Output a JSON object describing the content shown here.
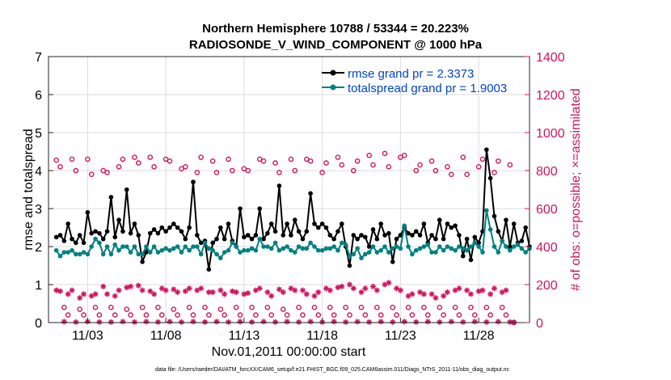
{
  "chart_data": {
    "type": "line",
    "title": "Northern Hemisphere 10788 / 53344 = 20.223%",
    "subtitle": "RADIOSONDE_V_WIND_COMPONENT @ 1000 hPa",
    "xlabel": "Nov.01,2011 00:00:00 start",
    "ylabel": "rmse and totalspread",
    "ylabel_right": "# of obs: o=possible; ×=assimilated",
    "footer": "data file: /Users/raeder/DAI/ATM_forcXX/CAM6_setup/f.e21.FHIST_BGC.f09_025.CAM6assim.011/Diags_NTrS_2011-11/obs_diag_output.nc",
    "xlim": [
      0.5,
      31.25
    ],
    "ylim": [
      0,
      7
    ],
    "ylim_right": [
      0,
      1400
    ],
    "x_tick_values": [
      3,
      8,
      13,
      18,
      23,
      28
    ],
    "x_tick_labels": [
      "11/03",
      "11/08",
      "11/13",
      "11/18",
      "11/23",
      "11/28"
    ],
    "y_tick_labels": [
      "0",
      "1",
      "2",
      "3",
      "4",
      "5",
      "6",
      "7"
    ],
    "y_right_tick_labels": [
      "0",
      "200",
      "400",
      "600",
      "800",
      "1000",
      "1200",
      "1400"
    ],
    "legend": [
      "rmse grand pr = 2.3373",
      "totalspread grand pr = 1.9003"
    ],
    "colors": {
      "rmse": "#000000",
      "spread": "#008080",
      "obs": "#d0145f",
      "legend_text": "#0044cc"
    },
    "series": [
      {
        "name": "rmse",
        "axis": "left",
        "values": [
          2.25,
          2.3,
          2.15,
          2.6,
          2.2,
          2.1,
          2.3,
          2.1,
          2.9,
          2.35,
          2.4,
          2.35,
          2.2,
          2.4,
          3.3,
          2.25,
          2.7,
          2.4,
          3.5,
          2.35,
          2.6,
          2.3,
          1.6,
          1.85,
          2.35,
          2.45,
          2.35,
          2.5,
          2.4,
          2.5,
          2.6,
          2.5,
          2.4,
          2.2,
          2.5,
          3.7,
          2.3,
          2.1,
          2.15,
          1.4,
          2.1,
          2.2,
          2.5,
          2.2,
          2.6,
          2.15,
          2.0,
          3.0,
          2.25,
          2.3,
          2.2,
          2.3,
          3.0,
          2.2,
          2.35,
          2.6,
          2.4,
          3.6,
          2.3,
          2.6,
          2.3,
          2.7,
          2.4,
          2.2,
          2.4,
          3.4,
          2.6,
          2.5,
          2.6,
          2.5,
          2.3,
          2.2,
          2.4,
          2.6,
          2.0,
          1.5,
          2.3,
          2.2,
          2.3,
          2.25,
          2.0,
          2.45,
          2.2,
          2.6,
          2.3,
          2.35,
          1.6,
          2.2,
          2.3,
          2.5,
          2.35,
          2.3,
          2.4,
          2.3,
          2.6,
          2.1,
          2.3,
          2.2,
          2.7,
          2.2,
          2.6,
          2.5,
          2.55,
          2.3,
          1.75,
          2.2,
          1.65,
          2.25,
          2.1,
          2.4,
          4.55,
          3.8,
          2.8,
          2.4,
          2.15,
          2.7,
          2.0,
          2.6,
          2.1,
          2.15,
          2.5,
          2.0
        ]
      },
      {
        "name": "totalspread",
        "axis": "left",
        "values": [
          1.9,
          1.75,
          1.85,
          1.85,
          1.9,
          1.8,
          1.8,
          1.85,
          1.8,
          2.0,
          2.2,
          2.1,
          1.8,
          2.0,
          1.8,
          2.05,
          1.9,
          2.0,
          2.0,
          1.85,
          2.0,
          1.8,
          1.8,
          2.0,
          1.85,
          2.0,
          1.85,
          1.9,
          1.95,
          1.9,
          1.95,
          2.0,
          1.85,
          2.0,
          1.9,
          2.0,
          2.0,
          1.8,
          2.1,
          1.95,
          1.9,
          1.8,
          1.7,
          1.85,
          1.9,
          2.1,
          2.0,
          1.85,
          1.9,
          1.9,
          1.95,
          1.9,
          2.2,
          2.0,
          2.0,
          1.95,
          2.1,
          1.9,
          1.95,
          2.0,
          1.9,
          1.85,
          2.0,
          1.95,
          1.95,
          2.1,
          2.0,
          1.9,
          1.9,
          1.95,
          1.95,
          2.0,
          1.9,
          2.1,
          2.05,
          1.75,
          1.8,
          1.95,
          1.7,
          1.8,
          1.85,
          2.0,
          1.85,
          1.9,
          2.0,
          1.85,
          1.95,
          2.0,
          1.95,
          2.55,
          2.0,
          1.8,
          1.9,
          1.95,
          2.0,
          2.05,
          1.85,
          1.85,
          2.0,
          1.9,
          2.0,
          1.95,
          1.9,
          2.0,
          1.95,
          1.9,
          2.0,
          2.1,
          2.0,
          1.85,
          2.95,
          2.45,
          2.0,
          1.85,
          2.15,
          2.0,
          1.9,
          2.0,
          2.05,
          1.95,
          1.85,
          1.95
        ]
      },
      {
        "name": "possible",
        "axis": "right",
        "values": [
          855,
          820,
          80,
          40,
          860,
          800,
          70,
          40,
          860,
          780,
          80,
          40,
          800,
          790,
          80,
          40,
          820,
          860,
          70,
          40,
          870,
          840,
          80,
          40,
          870,
          820,
          80,
          40,
          860,
          850,
          70,
          40,
          810,
          820,
          80,
          40,
          790,
          870,
          80,
          40,
          850,
          790,
          70,
          40,
          860,
          800,
          80,
          40,
          810,
          800,
          80,
          40,
          860,
          850,
          80,
          40,
          840,
          790,
          70,
          40,
          860,
          800,
          80,
          40,
          860,
          850,
          80,
          40,
          790,
          840,
          80,
          40,
          870,
          830,
          80,
          40,
          800,
          850,
          80,
          40,
          880,
          830,
          80,
          40,
          890,
          820,
          80,
          40,
          870,
          880,
          80,
          40,
          800,
          830,
          80,
          40,
          850,
          800,
          80,
          40,
          820,
          780,
          80,
          40,
          870,
          780,
          80,
          40,
          820,
          860,
          80,
          40,
          790,
          850,
          80,
          40,
          830,
          0
        ]
      },
      {
        "name": "assimilated",
        "axis": "right",
        "values": [
          170,
          165,
          5,
          150,
          170,
          3,
          130,
          150,
          5,
          140,
          150,
          3,
          190,
          150,
          3,
          140,
          170,
          5,
          185,
          190,
          3,
          195,
          170,
          5,
          165,
          150,
          3,
          180,
          170,
          5,
          175,
          160,
          3,
          165,
          180,
          5,
          170,
          180,
          3,
          160,
          160,
          5,
          170,
          150,
          3,
          165,
          160,
          5,
          150,
          155,
          3,
          170,
          180,
          5,
          160,
          140,
          3,
          175,
          160,
          5,
          180,
          170,
          3,
          170,
          150,
          5,
          140,
          160,
          3,
          180,
          170,
          5,
          185,
          190,
          3,
          200,
          180,
          5,
          160,
          180,
          3,
          190,
          170,
          5,
          200,
          210,
          3,
          180,
          170,
          5,
          140,
          150,
          3,
          160,
          150,
          5,
          150,
          130,
          3,
          140,
          160,
          5,
          170,
          180,
          3,
          170,
          150,
          5,
          165,
          170,
          3,
          150,
          180,
          5,
          160,
          170,
          3,
          2
        ]
      }
    ]
  }
}
